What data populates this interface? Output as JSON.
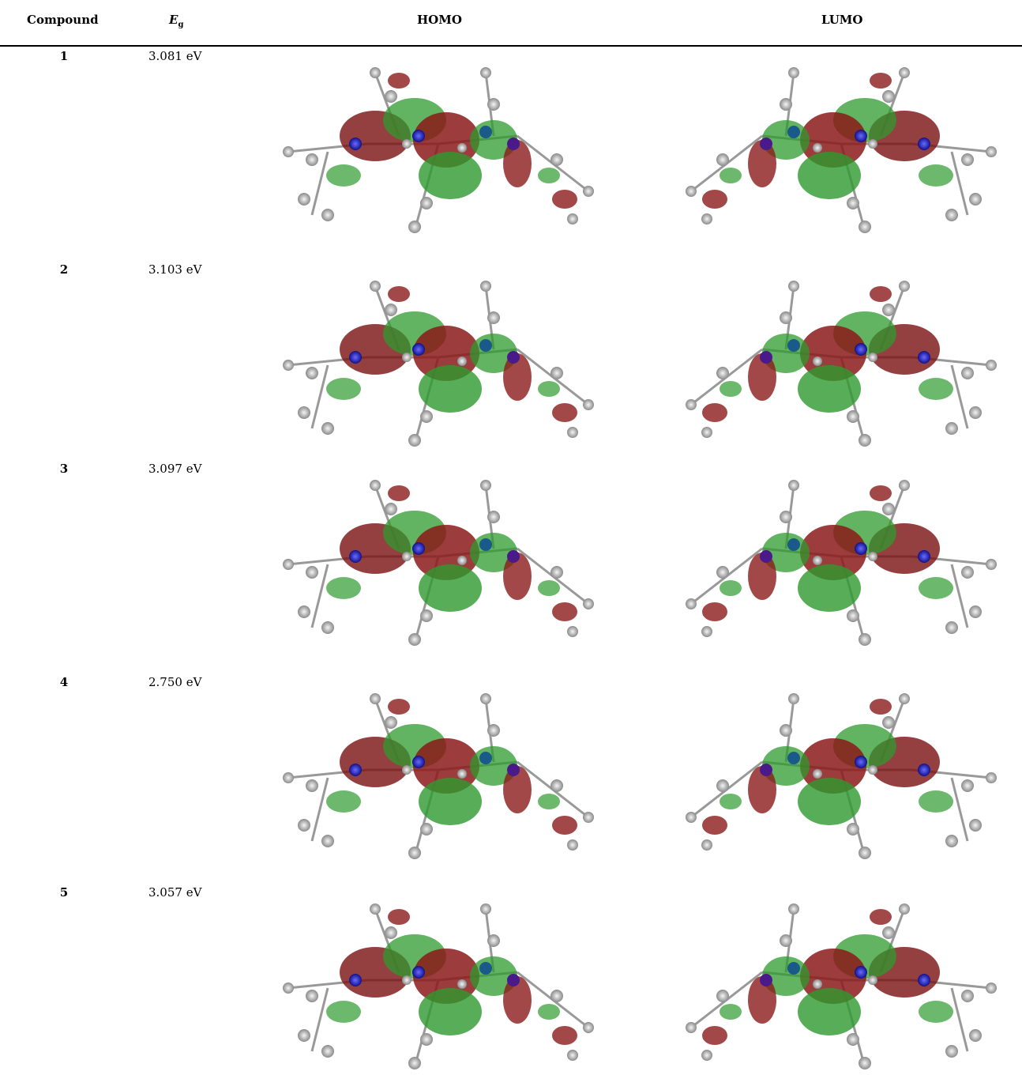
{
  "table": {
    "header": [
      "Compound",
      {
        "symbol": "E",
        "subscript": "g"
      },
      "HOMO",
      "LUMO"
    ],
    "rows": [
      [
        "1",
        "3.081 eV"
      ],
      [
        "2",
        "3.103 eV"
      ],
      [
        "3",
        "3.097 eV"
      ],
      [
        "4",
        "2.750 eV"
      ],
      [
        "5",
        "3.057 eV"
      ]
    ]
  }
}
